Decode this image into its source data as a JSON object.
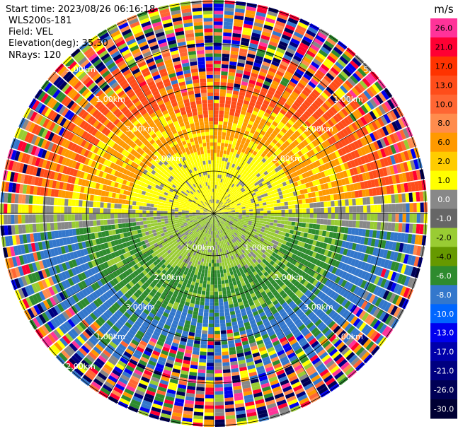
{
  "header": {
    "start_time": "Start time: 2023/08/26 06:16:18",
    "instrument": "WLS200s-181",
    "field": "Field: VEL",
    "elevation": "Elevation(deg): 35.30",
    "nrays": "NRays: 120"
  },
  "chart_data": {
    "type": "heatmap",
    "subtype": "ppi-polar",
    "ring_labels": [
      "1.00km",
      "2.00km",
      "3.00km",
      "5.00km"
    ],
    "colorbar": {
      "unit": "m/s",
      "ticks": [
        "26.0",
        "21.0",
        "17.0",
        "13.0",
        "10.0",
        "8.0",
        "6.0",
        "2.0",
        "1.0",
        "0.0",
        "-1.0",
        "-2.0",
        "-4.0",
        "-6.0",
        "-8.0",
        "-10.0",
        "-13.0",
        "-17.0",
        "-21.0",
        "-26.0",
        "-30.0"
      ],
      "colors": [
        "#ff3399",
        "#ff0033",
        "#ff3300",
        "#ff4d1a",
        "#ff6633",
        "#ff8c4d",
        "#ff9900",
        "#ffcc00",
        "#ffff00",
        "#888888",
        "#666666",
        "#99cc33",
        "#669900",
        "#2e8b2e",
        "#3377cc",
        "#0066ff",
        "#0000ee",
        "#0000aa",
        "#000080",
        "#000055",
        "#000033"
      ]
    },
    "pattern": {
      "north_half": "positive velocities: yellow near centre through orange/red outward",
      "south_half": "negative velocities: green near centre through blue outward",
      "outer_rings": "noisy multicolour returns"
    },
    "palette": {
      "pos_near": "#ffff00",
      "pos_mid": "#ff9900",
      "pos_far": "#ff4d1a",
      "neg_near": "#99cc33",
      "neg_mid": "#2e8b2e",
      "neg_far": "#3377cc",
      "zero": "#888888",
      "noise": [
        "#ff3399",
        "#ff0033",
        "#ffff00",
        "#0000ee",
        "#000080",
        "#2e8b2e",
        "#ff9900",
        "#99cc33",
        "#3377cc",
        "#ff6633",
        "#000055",
        "#888888",
        "#ff8c4d"
      ]
    }
  }
}
